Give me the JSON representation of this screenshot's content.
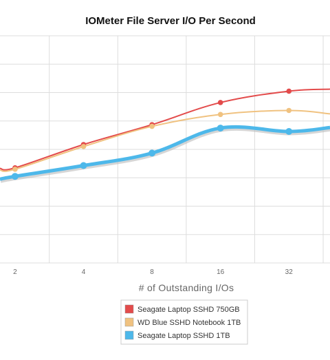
{
  "chart_data": {
    "type": "line",
    "title": "IOMeter File Server I/O Per Second",
    "xlabel": "# of Outstanding I/Os",
    "ylabel": "",
    "categories": [
      "2",
      "4",
      "8",
      "16",
      "32"
    ],
    "x": [
      1,
      2,
      3,
      4,
      5
    ],
    "xlim": [
      0.78,
      5.6
    ],
    "ylim": [
      0,
      8
    ],
    "grid": true,
    "legend_position": "bottom-center",
    "series": [
      {
        "name": "Seagate Laptop SSHD 750GB",
        "color": "#e34b4b",
        "x": [
          0.78,
          1,
          2,
          3,
          4,
          5,
          5.6
        ],
        "y": [
          3.33,
          3.35,
          4.17,
          4.87,
          5.65,
          6.05,
          6.12
        ],
        "markers": [
          1,
          2,
          3,
          4,
          5
        ],
        "width": 2
      },
      {
        "name": "WD Blue SSHD Notebook 1TB",
        "color": "#f0c280",
        "x": [
          0.78,
          1,
          2,
          3,
          4,
          5,
          5.6
        ],
        "y": [
          3.27,
          3.3,
          4.1,
          4.81,
          5.23,
          5.37,
          5.25
        ],
        "markers": [
          1,
          2,
          3,
          4,
          5
        ],
        "width": 2
      },
      {
        "name": "Seagate Laptop SSHD 1TB",
        "color": "#4db8ea",
        "x": [
          0.78,
          1,
          2,
          3,
          4,
          5,
          5.6
        ],
        "y": [
          2.95,
          3.05,
          3.43,
          3.87,
          4.75,
          4.63,
          4.77
        ],
        "markers": [
          1,
          2,
          3,
          4,
          5
        ],
        "width": 5
      }
    ]
  }
}
